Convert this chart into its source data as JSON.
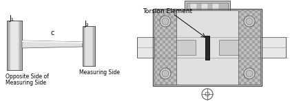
{
  "fig_width": 4.21,
  "fig_height": 1.47,
  "dpi": 100,
  "bg_color": "#ffffff",
  "left": {
    "J1_label": "J₁",
    "J2_label": "J₂",
    "c_label": "c",
    "bottom_label1": "Opposite Side of",
    "bottom_label2": "Measuring Side",
    "meas_label": "Measuring Side"
  },
  "right": {
    "title": "Torsion Element"
  }
}
